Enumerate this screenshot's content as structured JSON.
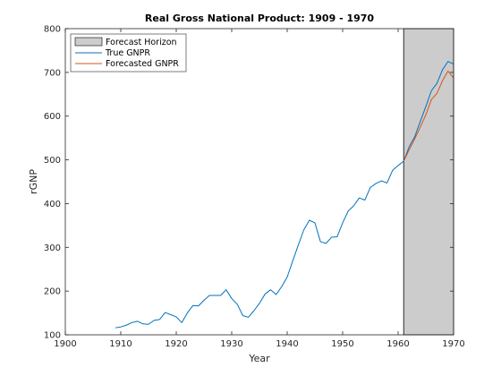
{
  "chart_data": {
    "type": "line",
    "title": "Real Gross National Product: 1909 - 1970",
    "xlabel": "Year",
    "ylabel": "rGNP",
    "xlim": [
      1900,
      1970
    ],
    "ylim": [
      100,
      800
    ],
    "xticks": [
      1900,
      1910,
      1920,
      1930,
      1940,
      1950,
      1960,
      1970
    ],
    "yticks": [
      100,
      200,
      300,
      400,
      500,
      600,
      700,
      800
    ],
    "grid": false,
    "legend_position": "top-left",
    "shaded_region": {
      "label": "Forecast Horizon",
      "x_range": [
        1961,
        1970
      ],
      "color": "#cccccc"
    },
    "series": [
      {
        "name": "True GNPR",
        "color": "#0072bd",
        "x": [
          1909,
          1910,
          1911,
          1912,
          1913,
          1914,
          1915,
          1916,
          1917,
          1918,
          1919,
          1920,
          1921,
          1922,
          1923,
          1924,
          1925,
          1926,
          1927,
          1928,
          1929,
          1930,
          1931,
          1932,
          1933,
          1934,
          1935,
          1936,
          1937,
          1938,
          1939,
          1940,
          1941,
          1942,
          1943,
          1944,
          1945,
          1946,
          1947,
          1948,
          1949,
          1950,
          1951,
          1952,
          1953,
          1954,
          1955,
          1956,
          1957,
          1958,
          1959,
          1960,
          1961,
          1962,
          1963,
          1964,
          1965,
          1966,
          1967,
          1968,
          1969,
          1970
        ],
        "values": [
          116,
          118,
          122,
          128,
          131,
          125,
          124,
          133,
          135,
          151,
          146,
          141,
          128,
          150,
          167,
          166,
          179,
          190,
          190,
          190,
          203,
          183,
          170,
          144,
          140,
          155,
          172,
          193,
          203,
          192,
          210,
          232,
          269,
          305,
          340,
          362,
          356,
          313,
          309,
          323,
          324,
          356,
          383,
          395,
          413,
          408,
          437,
          446,
          452,
          447,
          476,
          487,
          497,
          530,
          553,
          588,
          622,
          658,
          675,
          706,
          725,
          719
        ]
      },
      {
        "name": "Forecasted GNPR",
        "color": "#d95319",
        "x": [
          1961,
          1962,
          1963,
          1964,
          1965,
          1966,
          1967,
          1968,
          1969,
          1970
        ],
        "values": [
          497,
          523,
          548,
          575,
          603,
          638,
          652,
          681,
          703,
          687
        ]
      }
    ]
  }
}
